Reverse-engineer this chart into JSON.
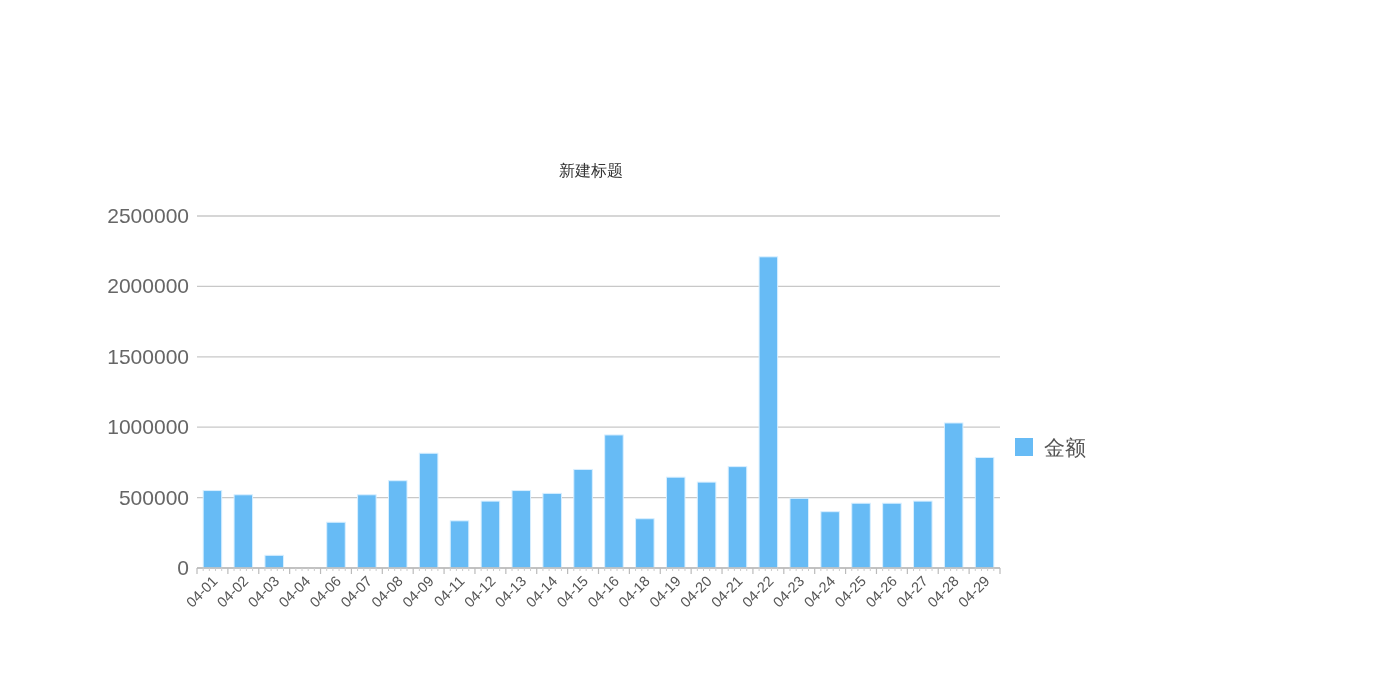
{
  "chart_data": {
    "type": "bar",
    "title": "新建标题",
    "categories": [
      "04-01",
      "04-02",
      "04-03",
      "04-04",
      "04-06",
      "04-07",
      "04-08",
      "04-09",
      "04-11",
      "04-12",
      "04-13",
      "04-14",
      "04-15",
      "04-16",
      "04-18",
      "04-19",
      "04-20",
      "04-21",
      "04-22",
      "04-23",
      "04-24",
      "04-25",
      "04-26",
      "04-27",
      "04-28",
      "04-29"
    ],
    "series": [
      {
        "name": "金额",
        "color": "#67bbf5",
        "values": [
          550000,
          520000,
          90000,
          0,
          325000,
          520000,
          620000,
          815000,
          335000,
          475000,
          550000,
          530000,
          700000,
          945000,
          350000,
          645000,
          610000,
          720000,
          2210000,
          495000,
          400000,
          460000,
          460000,
          475000,
          1030000,
          785000
        ]
      }
    ],
    "ylim": [
      0,
      2500000
    ],
    "yticks": [
      0,
      500000,
      1000000,
      1500000,
      2000000,
      2500000
    ],
    "grid": "y",
    "legend": "right"
  }
}
